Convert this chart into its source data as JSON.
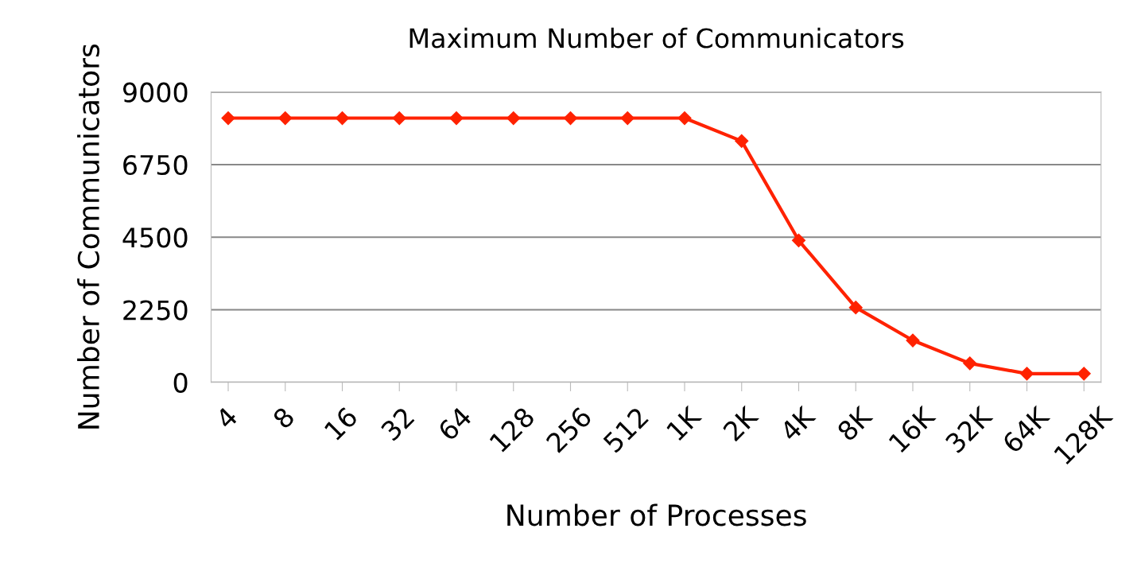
{
  "chart_data": {
    "type": "line",
    "title": "Maximum Number of Communicators",
    "xlabel": "Number of Processes",
    "ylabel": "Number of Communicators",
    "categories": [
      "4",
      "8",
      "16",
      "32",
      "64",
      "128",
      "256",
      "512",
      "1K",
      "2K",
      "4K",
      "8K",
      "16K",
      "32K",
      "64K",
      "128K"
    ],
    "series": [
      {
        "color": "#ff2200",
        "values": [
          8190,
          8190,
          8190,
          8190,
          8190,
          8190,
          8190,
          8190,
          8190,
          7480,
          4400,
          2320,
          1300,
          590,
          270,
          270
        ]
      }
    ],
    "ylim": [
      0,
      9000
    ],
    "yticks": [
      0,
      2250,
      4500,
      6750,
      9000
    ],
    "grid": "y",
    "legend": false,
    "marker": "diamond",
    "line_style": "solid"
  }
}
